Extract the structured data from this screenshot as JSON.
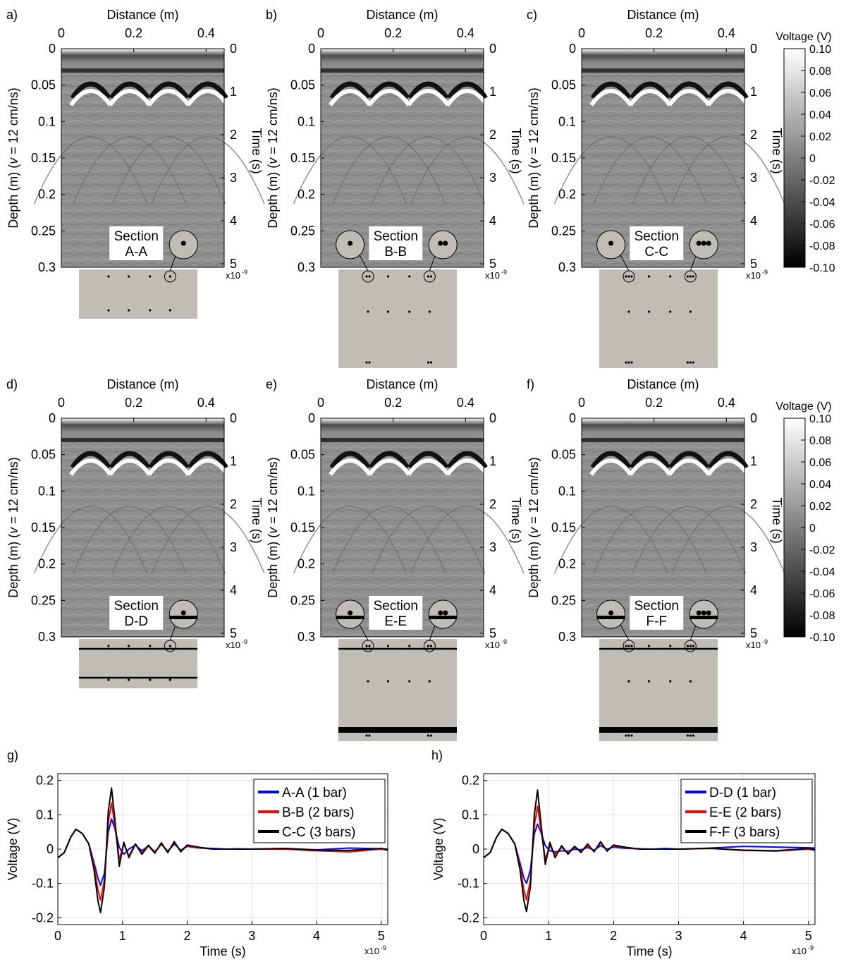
{
  "radargrams": {
    "common": {
      "top_axis_label": "Distance (m)",
      "left_axis_label_pre": "Depth (m) (",
      "left_axis_label_var": "v",
      "left_axis_label_post": " = 12 cm/ns)",
      "right_axis_label": "Time (s)",
      "exponent": "x10",
      "exponent_power": "-9",
      "distance_ticks": [
        "0",
        "0.2",
        "0.4"
      ],
      "depth_ticks": [
        "0",
        "0.05",
        "0.1",
        "0.15",
        "0.2",
        "0.25",
        "0.3"
      ],
      "time_ticks": [
        "0",
        "1",
        "2",
        "3",
        "4",
        "5"
      ],
      "section_word": "Section"
    },
    "panels": [
      {
        "letter": "a)",
        "section": "A-A",
        "bars": 1,
        "layers": false
      },
      {
        "letter": "b)",
        "section": "B-B",
        "bars": 2,
        "layers": false
      },
      {
        "letter": "c)",
        "section": "C-C",
        "bars": 3,
        "layers": false
      },
      {
        "letter": "d)",
        "section": "D-D",
        "bars": 1,
        "layers": true
      },
      {
        "letter": "e)",
        "section": "E-E",
        "bars": 2,
        "layers": true
      },
      {
        "letter": "f)",
        "section": "F-F",
        "bars": 3,
        "layers": true
      }
    ]
  },
  "colorbar": {
    "title": "Voltage (V)",
    "ticks": [
      "0.10",
      "0.08",
      "0.06",
      "0.04",
      "0.02",
      "0",
      "-0.02",
      "-0.04",
      "-0.06",
      "-0.08",
      "-0.10"
    ]
  },
  "colors": {
    "concrete": "#c0bdb6",
    "series_1_bar": "#0000ff",
    "series_2_bars": "#ff0000",
    "series_3_bars": "#000000"
  },
  "chart_data": [
    {
      "type": "line",
      "panel": "g)",
      "xlabel": "Time (s)",
      "ylabel": "Voltage (V)",
      "x_exponent": "x10",
      "x_exponent_power": "-9",
      "xlim": [
        0,
        5.1
      ],
      "ylim": [
        -0.22,
        0.22
      ],
      "xticks": [
        "0",
        "1",
        "2",
        "3",
        "4",
        "5"
      ],
      "yticks": [
        "0.2",
        "0.1",
        "0",
        "-0.1",
        "-0.2"
      ],
      "grid": true,
      "legend_position": "top-right",
      "series": [
        {
          "name": "A-A (1 bar)",
          "color": "#0000ff",
          "x": [
            0,
            0.1,
            0.2,
            0.28,
            0.38,
            0.48,
            0.56,
            0.62,
            0.66,
            0.72,
            0.78,
            0.83,
            0.88,
            0.95,
            1.02,
            1.1,
            1.2,
            1.3,
            1.4,
            1.5,
            1.6,
            1.7,
            1.8,
            1.9,
            2.0,
            2.2,
            2.4,
            2.6,
            2.8,
            3.0,
            3.5,
            4.0,
            4.5,
            5.0,
            5.1
          ],
          "y": [
            -0.025,
            -0.01,
            0.035,
            0.058,
            0.045,
            0.015,
            -0.04,
            -0.085,
            -0.105,
            -0.07,
            0.05,
            0.088,
            0.06,
            0.005,
            -0.015,
            0.0,
            0.012,
            -0.005,
            0.01,
            -0.008,
            0.014,
            -0.006,
            0.015,
            -0.003,
            0.008,
            0.003,
            0.002,
            0.0,
            0.001,
            0.0,
            0.002,
            -0.002,
            0.003,
            0.001,
            0.0
          ]
        },
        {
          "name": "B-B (2 bars)",
          "color": "#ff0000",
          "x": [
            0,
            0.1,
            0.2,
            0.28,
            0.38,
            0.48,
            0.56,
            0.62,
            0.66,
            0.72,
            0.78,
            0.83,
            0.88,
            0.95,
            1.02,
            1.1,
            1.2,
            1.3,
            1.4,
            1.5,
            1.6,
            1.7,
            1.8,
            1.9,
            2.0,
            2.2,
            2.4,
            2.6,
            2.8,
            3.0,
            3.5,
            4.0,
            4.5,
            5.0,
            5.1
          ],
          "y": [
            -0.025,
            -0.01,
            0.035,
            0.058,
            0.045,
            0.015,
            -0.05,
            -0.12,
            -0.148,
            -0.09,
            0.08,
            0.135,
            0.07,
            -0.03,
            0.015,
            -0.02,
            0.015,
            -0.012,
            0.012,
            -0.01,
            0.015,
            -0.008,
            0.02,
            -0.005,
            0.01,
            0.004,
            0.0,
            0.0,
            0.0,
            0.0,
            0.0,
            -0.005,
            -0.008,
            0.0,
            -0.003
          ]
        },
        {
          "name": "C-C (3 bars)",
          "color": "#000000",
          "x": [
            0,
            0.1,
            0.2,
            0.28,
            0.38,
            0.48,
            0.56,
            0.62,
            0.66,
            0.72,
            0.78,
            0.83,
            0.88,
            0.95,
            1.02,
            1.1,
            1.2,
            1.3,
            1.4,
            1.5,
            1.6,
            1.7,
            1.8,
            1.9,
            2.0,
            2.2,
            2.4,
            2.6,
            2.8,
            3.0,
            3.5,
            4.0,
            4.5,
            5.0,
            5.1
          ],
          "y": [
            -0.025,
            -0.01,
            0.035,
            0.058,
            0.045,
            0.015,
            -0.06,
            -0.15,
            -0.185,
            -0.11,
            0.11,
            0.178,
            0.09,
            -0.05,
            0.02,
            -0.025,
            0.015,
            -0.015,
            0.01,
            -0.012,
            0.018,
            -0.01,
            0.022,
            -0.008,
            0.012,
            0.005,
            0.0,
            0.0,
            0.0,
            0.0,
            0.002,
            -0.003,
            -0.004,
            0.002,
            -0.002
          ]
        }
      ]
    },
    {
      "type": "line",
      "panel": "h)",
      "xlabel": "Time (s)",
      "ylabel": "Voltage (V)",
      "x_exponent": "x10",
      "x_exponent_power": "-9",
      "xlim": [
        0,
        5.1
      ],
      "ylim": [
        -0.22,
        0.22
      ],
      "xticks": [
        "0",
        "1",
        "2",
        "3",
        "4",
        "5"
      ],
      "yticks": [
        "0.2",
        "0.1",
        "0",
        "-0.1",
        "-0.2"
      ],
      "grid": true,
      "legend_position": "top-right",
      "series": [
        {
          "name": "D-D (1 bar)",
          "color": "#0000ff",
          "x": [
            0,
            0.1,
            0.2,
            0.28,
            0.38,
            0.48,
            0.56,
            0.62,
            0.66,
            0.72,
            0.78,
            0.83,
            0.88,
            0.95,
            1.02,
            1.1,
            1.2,
            1.3,
            1.4,
            1.5,
            1.6,
            1.7,
            1.8,
            1.9,
            2.0,
            2.2,
            2.4,
            2.6,
            2.8,
            3.0,
            3.5,
            4.0,
            4.5,
            5.0,
            5.1
          ],
          "y": [
            -0.025,
            -0.01,
            0.035,
            0.058,
            0.045,
            0.015,
            -0.04,
            -0.085,
            -0.1,
            -0.06,
            0.045,
            0.073,
            0.05,
            0.01,
            -0.005,
            -0.008,
            -0.005,
            -0.006,
            0.0,
            -0.002,
            0.005,
            -0.003,
            0.01,
            0.0,
            0.006,
            0.002,
            0.001,
            0.0,
            0.002,
            0.0,
            0.003,
            0.008,
            0.006,
            0.004,
            0.003
          ]
        },
        {
          "name": "E-E (2 bars)",
          "color": "#ff0000",
          "x": [
            0,
            0.1,
            0.2,
            0.28,
            0.38,
            0.48,
            0.56,
            0.62,
            0.66,
            0.72,
            0.78,
            0.83,
            0.88,
            0.95,
            1.02,
            1.1,
            1.2,
            1.3,
            1.4,
            1.5,
            1.6,
            1.7,
            1.8,
            1.9,
            2.0,
            2.2,
            2.4,
            2.6,
            2.8,
            3.0,
            3.5,
            4.0,
            4.5,
            5.0,
            5.1
          ],
          "y": [
            -0.025,
            -0.01,
            0.035,
            0.058,
            0.045,
            0.015,
            -0.05,
            -0.12,
            -0.148,
            -0.09,
            0.07,
            0.125,
            0.06,
            -0.03,
            0.01,
            -0.015,
            0.005,
            -0.01,
            0.008,
            -0.008,
            0.01,
            -0.006,
            0.018,
            -0.004,
            0.01,
            0.004,
            0.0,
            0.0,
            0.0,
            0.0,
            0.002,
            -0.004,
            -0.006,
            0.0,
            -0.004
          ]
        },
        {
          "name": "F-F (3 bars)",
          "color": "#000000",
          "x": [
            0,
            0.1,
            0.2,
            0.28,
            0.38,
            0.48,
            0.56,
            0.62,
            0.66,
            0.72,
            0.78,
            0.83,
            0.88,
            0.95,
            1.02,
            1.1,
            1.2,
            1.3,
            1.4,
            1.5,
            1.6,
            1.7,
            1.8,
            1.9,
            2.0,
            2.2,
            2.4,
            2.6,
            2.8,
            3.0,
            3.5,
            4.0,
            4.5,
            5.0,
            5.1
          ],
          "y": [
            -0.025,
            -0.01,
            0.035,
            0.058,
            0.045,
            0.015,
            -0.06,
            -0.15,
            -0.182,
            -0.11,
            0.1,
            0.172,
            0.08,
            -0.045,
            0.02,
            -0.025,
            0.01,
            -0.015,
            0.008,
            -0.01,
            0.015,
            -0.008,
            0.022,
            -0.006,
            0.012,
            0.005,
            0.0,
            0.0,
            0.0,
            0.0,
            0.002,
            -0.003,
            -0.005,
            0.002,
            -0.002
          ]
        }
      ]
    }
  ]
}
